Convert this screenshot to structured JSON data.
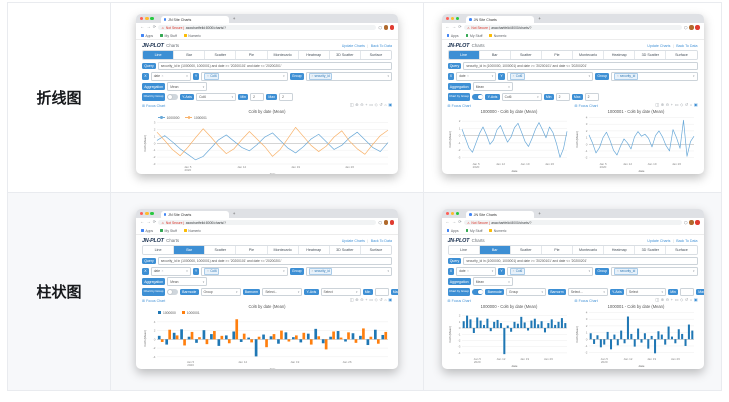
{
  "page": {
    "row_labels": [
      "折线图",
      "柱状图"
    ]
  },
  "chrome": {
    "tab_title": "JN Site Charts",
    "new_tab_plus": "+",
    "warn_icon": "⚠",
    "not_secure": "Not Secure |",
    "url": "aswchartfelid:8000/charts/?",
    "bookmarks": [
      "Apps",
      "My Stuff",
      "Numeric"
    ]
  },
  "app": {
    "logo": "JN-PLOT",
    "logo_suffix": "Charts",
    "header_links": [
      "Update Charts",
      "Back To Data"
    ],
    "link_separator": "|",
    "tabs": [
      "Line",
      "Bar",
      "Scatter",
      "Pie",
      "Montecarlo",
      "Heatmap",
      "3D Scatter",
      "Surface"
    ],
    "query_label": "Query",
    "query_value": "security_id in (1000000, 1000001) and date >= '20200101' and date <= '20200201'",
    "x_label": "X",
    "x_value": "date",
    "y_label": "Y",
    "y_value": "Col6",
    "group_label": "Group",
    "group_value": "security_id",
    "agg_label": "Aggregation",
    "agg_value": "Mean",
    "chart_by_group_label": "Chart by Group",
    "focus_link": "Focus Chart",
    "min_label": "Min",
    "max_label": "Max",
    "ui_blue": "#3d8fd4",
    "modebar_icons": [
      {
        "name": "camera-icon",
        "glyph": "◫"
      },
      {
        "name": "zoom-icon",
        "glyph": "⊕"
      },
      {
        "name": "zoom-out-icon",
        "glyph": "⊖"
      },
      {
        "name": "pan-icon",
        "glyph": "+"
      },
      {
        "name": "box-select-icon",
        "glyph": "▭"
      },
      {
        "name": "lasso-select-icon",
        "glyph": "◇"
      },
      {
        "name": "reset-axes-icon",
        "glyph": "↺"
      },
      {
        "name": "autoscale-icon",
        "glyph": "⌂"
      },
      {
        "name": "plotly-logo-icon",
        "glyph": "▣"
      }
    ]
  },
  "windows": [
    {
      "slot": "w0",
      "active_tab": 0,
      "toggle_on": false,
      "panels": [
        0
      ],
      "extra_controls": [
        {
          "label": "Y-Axis",
          "value": "Col6"
        },
        {
          "minmax": true,
          "min": "2",
          "max": "2"
        }
      ]
    },
    {
      "slot": "w1",
      "active_tab": 0,
      "toggle_on": true,
      "panels": [
        1,
        2
      ],
      "extra_controls": [
        {
          "label": "Y-Axis",
          "value": "Col6"
        },
        {
          "minmax": true,
          "min": "2",
          "max": "2"
        }
      ]
    },
    {
      "slot": "w2",
      "active_tab": 1,
      "toggle_on": false,
      "panels": [
        3
      ],
      "extra_controls": [
        {
          "label": "Barmode",
          "value": "Group"
        },
        {
          "label": "Barnorm",
          "value": "Select..."
        },
        {
          "label": "Y-Axis",
          "value": "Select"
        },
        {
          "minmax": true,
          "min": "",
          "max": ""
        }
      ]
    },
    {
      "slot": "w3",
      "active_tab": 1,
      "toggle_on": true,
      "panels": [
        4,
        5
      ],
      "extra_controls": [
        {
          "label": "Barmode",
          "value": "Group"
        },
        {
          "label": "Barnorm",
          "value": "Select..."
        },
        {
          "label": "Y-Axis",
          "value": "Select"
        },
        {
          "minmax": true,
          "min": "",
          "max": ""
        }
      ]
    }
  ],
  "chart_data": [
    {
      "type": "line",
      "title": "Col6 by date (Mean)",
      "xlabel": "date",
      "ylabel": "Col6 (Mean)",
      "ylim": [
        -3,
        3
      ],
      "yticks": [
        -3,
        -2,
        -1,
        0,
        1,
        2,
        3
      ],
      "n": 31,
      "xtick_pos": [
        4,
        11,
        18,
        25
      ],
      "xtick_labels": [
        "Jan 5|2020",
        "Jan 12",
        "Jan 19",
        "Jan 26"
      ],
      "legend": [
        "1000000",
        "1000001"
      ],
      "series": [
        {
          "name": "1000000",
          "color": "#6aa9d8",
          "values": [
            0.4,
            1.1,
            0.2,
            -0.8,
            -1.6,
            -2.4,
            -1.9,
            -0.7,
            0.5,
            1.2,
            0.3,
            -0.6,
            -1.1,
            -0.2,
            0.9,
            1.5,
            0.4,
            -0.7,
            -1.4,
            -0.5,
            0.6,
            1.3,
            0.2,
            -0.9,
            -0.3,
            0.8,
            1.6,
            0.5,
            -0.6,
            -1.2,
            0.1
          ]
        },
        {
          "name": "1000001",
          "color": "#f8b26a",
          "values": [
            1.6,
            0.4,
            -0.9,
            -1.8,
            -0.6,
            0.8,
            2.1,
            0.9,
            -0.4,
            -1.5,
            -0.8,
            0.5,
            1.7,
            0.6,
            -0.5,
            -1.9,
            -0.9,
            0.7,
            2.3,
            1.0,
            -0.3,
            -1.2,
            -0.4,
            0.9,
            1.8,
            0.3,
            -0.8,
            -1.6,
            -0.2,
            1.1,
            1.9
          ]
        }
      ]
    },
    {
      "type": "line",
      "title": "1000000 - Col6 by date (Mean)",
      "xlabel": "date",
      "ylabel": "Col6 (Mean)",
      "ylim": [
        -3.5,
        2.5
      ],
      "yticks": [
        -3,
        -2,
        -1,
        0,
        1,
        2
      ],
      "n": 31,
      "xtick_pos": [
        4,
        11,
        18,
        25
      ],
      "xtick_labels": [
        "Jan 5|2020",
        "Jan 12",
        "Jan 19",
        "Jan 26"
      ],
      "series": [
        {
          "name": "1000000",
          "color": "#6aa9d8",
          "values": [
            0.9,
            -0.4,
            -1.7,
            -2.3,
            -1.0,
            0.3,
            1.2,
            0.1,
            -1.2,
            -0.6,
            0.8,
            1.4,
            0.2,
            -0.9,
            -0.2,
            1.1,
            1.7,
            0.5,
            -0.8,
            -1.5,
            -0.4,
            0.9,
            1.8,
            0.8,
            -0.3,
            1.2,
            0.4,
            -1.1,
            -3.0,
            -1.8,
            0.6
          ]
        }
      ]
    },
    {
      "type": "line",
      "title": "1000001 - Col6 by date (Mean)",
      "xlabel": "date",
      "ylabel": "Col6 (Mean)",
      "ylim": [
        -2.5,
        4
      ],
      "yticks": [
        -2,
        -1,
        0,
        1,
        2,
        3,
        4
      ],
      "n": 31,
      "xtick_pos": [
        4,
        11,
        18,
        25
      ],
      "xtick_labels": [
        "Jan 5|2020",
        "Jan 12",
        "Jan 19",
        "Jan 26"
      ],
      "series": [
        {
          "name": "1000001",
          "color": "#6aa9d8",
          "values": [
            1.4,
            0.2,
            -1.3,
            -0.5,
            1.0,
            1.8,
            0.6,
            -0.9,
            -1.6,
            -0.3,
            0.8,
            0.2,
            -0.7,
            1.1,
            1.9,
            1.2,
            1.5,
            0.9,
            -0.4,
            1.3,
            2.0,
            1.1,
            -0.2,
            -1.0,
            2.2,
            1.0,
            -0.6,
            3.6,
            -1.8,
            0.4,
            1.2
          ]
        }
      ]
    },
    {
      "type": "bar",
      "title": "Col6 by date (Mean)",
      "xlabel": "date",
      "ylabel": "Col6 (Mean)",
      "ylim": [
        -4.5,
        5
      ],
      "yticks": [
        -4,
        -2,
        0,
        2,
        4
      ],
      "n": 31,
      "xtick_pos": [
        4,
        11,
        18,
        25
      ],
      "xtick_labels": [
        "Jan 5|2020",
        "Jan 12",
        "Jan 19",
        "Jan 26"
      ],
      "legend": [
        "1000000",
        "1000001"
      ],
      "series": [
        {
          "name": "1000000",
          "color": "#1f77b4",
          "values": [
            0.8,
            -1.2,
            1.5,
            2.3,
            0.6,
            -0.8,
            2.1,
            1.2,
            -1.5,
            0.9,
            1.8,
            -0.6,
            0.4,
            -3.9,
            1.1,
            0.7,
            -1.0,
            1.6,
            0.5,
            -0.7,
            1.3,
            2.4,
            -0.9,
            0.6,
            1.9,
            -0.5,
            1.4,
            0.8,
            -1.3,
            2.2,
            1.0
          ]
        },
        {
          "name": "1000001",
          "color": "#ff7f0e",
          "values": [
            -0.6,
            2.2,
            0.9,
            -1.4,
            1.7,
            0.5,
            -1.1,
            1.9,
            0.8,
            -0.9,
            4.6,
            1.3,
            -0.7,
            0.6,
            -1.8,
            1.2,
            2.0,
            -0.5,
            0.9,
            1.5,
            -1.2,
            0.7,
            -2.3,
            1.8,
            0.4,
            1.6,
            -0.8,
            2.5,
            0.6,
            -1.0,
            1.7
          ]
        }
      ]
    },
    {
      "type": "bar",
      "title": "1000000 - Col6 by date (Mean)",
      "xlabel": "date",
      "ylabel": "Col6 (Mean)",
      "ylim": [
        -4.5,
        2.5
      ],
      "yticks": [
        -4,
        -3,
        -2,
        -1,
        0,
        1,
        2
      ],
      "n": 31,
      "xtick_pos": [
        4,
        11,
        18,
        25
      ],
      "xtick_labels": [
        "Jan 5|2020",
        "Jan 12",
        "Jan 19",
        "Jan 26"
      ],
      "series": [
        {
          "name": "1000000",
          "color": "#1f77b4",
          "values": [
            1.1,
            2.0,
            1.4,
            -0.8,
            1.7,
            1.2,
            0.5,
            1.5,
            -0.5,
            1.0,
            1.3,
            0.8,
            -4.2,
            0.4,
            -0.6,
            1.0,
            0.7,
            1.8,
            0.9,
            -0.4,
            1.2,
            1.5,
            0.6,
            1.1,
            -0.7,
            0.8,
            1.4,
            0.5,
            1.0,
            1.6,
            0.8
          ]
        }
      ]
    },
    {
      "type": "bar",
      "title": "1000001 - Col6 by date (Mean)",
      "xlabel": "date",
      "ylabel": "Col6 (Mean)",
      "ylim": [
        -2.5,
        4
      ],
      "yticks": [
        -2,
        -1,
        0,
        1,
        2,
        3,
        4
      ],
      "n": 31,
      "xtick_pos": [
        4,
        11,
        18,
        25
      ],
      "xtick_labels": [
        "Jan 5|2020",
        "Jan 12",
        "Jan 19",
        "Jan 26"
      ],
      "series": [
        {
          "name": "1000001",
          "color": "#1f77b4",
          "values": [
            0.9,
            -0.7,
            0.6,
            -1.2,
            -0.8,
            1.1,
            -1.5,
            0.7,
            -0.9,
            1.3,
            -0.6,
            3.4,
            0.8,
            -1.1,
            1.6,
            -0.5,
            0.9,
            -1.4,
            0.5,
            -2.1,
            1.2,
            0.7,
            -0.8,
            1.9,
            0.4,
            -0.6,
            1.5,
            0.8,
            -1.0,
            2.2,
            1.3
          ]
        }
      ]
    }
  ]
}
